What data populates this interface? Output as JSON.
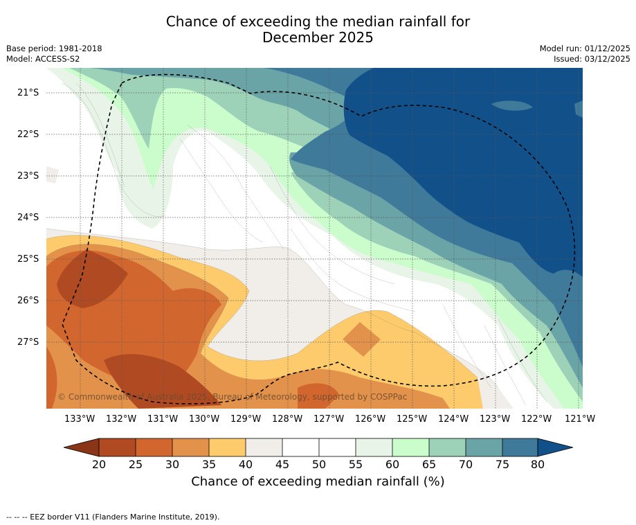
{
  "title": {
    "line1": "Chance of exceeding the median rainfall for",
    "line2": "December 2025"
  },
  "meta": {
    "base_period": "Base period: 1981-2018",
    "model": "Model: ACCESS-S2",
    "model_run": "Model run: 01/12/2025",
    "issued": "Issued: 03/12/2025"
  },
  "map": {
    "lat_labels": [
      "21°S",
      "22°S",
      "23°S",
      "24°S",
      "25°S",
      "26°S",
      "27°S"
    ],
    "lon_labels": [
      "133°W",
      "132°W",
      "131°W",
      "130°W",
      "129°W",
      "128°W",
      "127°W",
      "126°W",
      "125°W",
      "124°W",
      "123°W",
      "122°W",
      "121°W"
    ],
    "copyright": "© Commonwealth of Australia 2025, Bureau of Meteorology, supported by COSPPac",
    "boundary": "EEZ border (dashed)"
  },
  "colorbar": {
    "ticks": [
      "20",
      "25",
      "30",
      "35",
      "40",
      "45",
      "50",
      "55",
      "60",
      "65",
      "70",
      "75",
      "80"
    ],
    "colors": [
      "#8a3418",
      "#b04a22",
      "#d1662f",
      "#e2924a",
      "#fdcb6b",
      "#f1ede8",
      "#ffffff",
      "#ffffff",
      "#e8f4e8",
      "#cbfccb",
      "#9dd2b9",
      "#6aa4a6",
      "#3f7a9a",
      "#12508a"
    ],
    "title": "Chance of exceeding median rainfall (%)"
  },
  "footnote": "--  --  -- EEZ border V11 (Flanders Marine Institute, 2019)."
}
